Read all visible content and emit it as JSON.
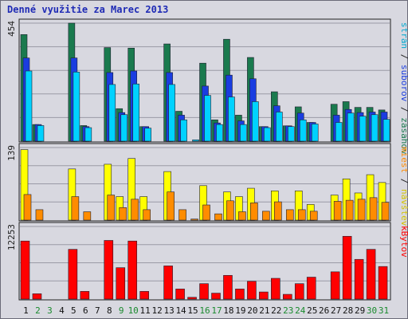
{
  "title": "Denné využitie za Marec 2013",
  "chart_data": [
    {
      "type": "bar",
      "panel": "top",
      "y_max_label": "454",
      "ylim": [
        0,
        454
      ],
      "grid": true,
      "x": [
        "1",
        "2",
        "3",
        "4",
        "5",
        "6",
        "7",
        "8",
        "9",
        "10",
        "11",
        "12",
        "13",
        "14",
        "15",
        "16",
        "17",
        "18",
        "19",
        "20",
        "21",
        "22",
        "23",
        "24",
        "25",
        "26",
        "27",
        "28",
        "29",
        "30",
        "31"
      ],
      "series": [
        {
          "name": "zásahov",
          "color": "#1a7a4e",
          "values": [
            410,
            64,
            0,
            0,
            454,
            60,
            0,
            360,
            125,
            358,
            56,
            0,
            374,
            115,
            0,
            300,
            82,
            392,
            100,
            322,
            56,
            190,
            59,
            132,
            72,
            0,
            142,
            152,
            130,
            130,
            120
          ]
        },
        {
          "name": "súborov",
          "color": "#1a3de0",
          "values": [
            320,
            64,
            0,
            0,
            320,
            56,
            0,
            264,
            110,
            270,
            56,
            0,
            264,
            100,
            0,
            212,
            70,
            254,
            78,
            240,
            56,
            136,
            59,
            108,
            72,
            0,
            100,
            122,
            110,
            112,
            112
          ]
        },
        {
          "name": "strán",
          "color": "#00d2ff",
          "values": [
            270,
            60,
            0,
            0,
            266,
            52,
            0,
            218,
            102,
            220,
            50,
            0,
            218,
            82,
            5,
            176,
            64,
            170,
            64,
            152,
            52,
            112,
            56,
            82,
            66,
            0,
            72,
            108,
            96,
            102,
            84
          ]
        }
      ]
    },
    {
      "type": "bar",
      "panel": "middle",
      "y_max_label": "139",
      "ylim": [
        0,
        139
      ],
      "grid": true,
      "series": [
        {
          "name": "návštev",
          "color": "#ffff00",
          "values": [
            135,
            0,
            0,
            0,
            98,
            0,
            0,
            107,
            45,
            118,
            45,
            0,
            93,
            0,
            0,
            66,
            0,
            54,
            45,
            61,
            0,
            56,
            0,
            56,
            30,
            0,
            48,
            79,
            52,
            87,
            72
          ]
        },
        {
          "name": "miest",
          "color": "#ff8c00",
          "values": [
            49,
            20,
            0,
            0,
            45,
            16,
            0,
            48,
            24,
            40,
            20,
            0,
            54,
            20,
            2,
            29,
            12,
            37,
            16,
            33,
            17,
            35,
            20,
            20,
            17,
            0,
            36,
            38,
            40,
            43,
            34
          ]
        }
      ]
    },
    {
      "type": "bar",
      "panel": "bottom",
      "y_max_label": "12253",
      "ylim": [
        0,
        12253
      ],
      "grid": true,
      "series": [
        {
          "name": "kBytov",
          "color": "#ff0000",
          "values": [
            9800,
            900,
            0,
            0,
            8400,
            1300,
            0,
            9900,
            5300,
            9800,
            1300,
            0,
            5600,
            1700,
            300,
            2600,
            1000,
            4000,
            1700,
            3000,
            1200,
            3500,
            800,
            2600,
            3700,
            0,
            4600,
            10600,
            6700,
            8400,
            5500
          ]
        }
      ]
    }
  ],
  "legend_top": [
    {
      "text": "strán",
      "color": "#00a9d0"
    },
    {
      "text": " / ",
      "color": "#222222"
    },
    {
      "text": "súborov",
      "color": "#1a3de0"
    },
    {
      "text": " / ",
      "color": "#222222"
    },
    {
      "text": "zásahov",
      "color": "#1a7a4e"
    }
  ],
  "legend_middle": [
    {
      "text": "miest",
      "color": "#ff8c00"
    },
    {
      "text": " / ",
      "color": "#222222"
    },
    {
      "text": "návštev",
      "color": "#d4c400"
    }
  ],
  "legend_bottom": [
    {
      "text": "kBytov",
      "color": "#ff0000"
    }
  ],
  "weekend_days": [
    "2",
    "3",
    "9",
    "10",
    "16",
    "17",
    "23",
    "24",
    "30",
    "31"
  ],
  "colors": {
    "weekday_label": "#111111",
    "weekend_label": "#1a8a2e",
    "grid": "#9a9aa6",
    "panel_border": "#222222"
  }
}
